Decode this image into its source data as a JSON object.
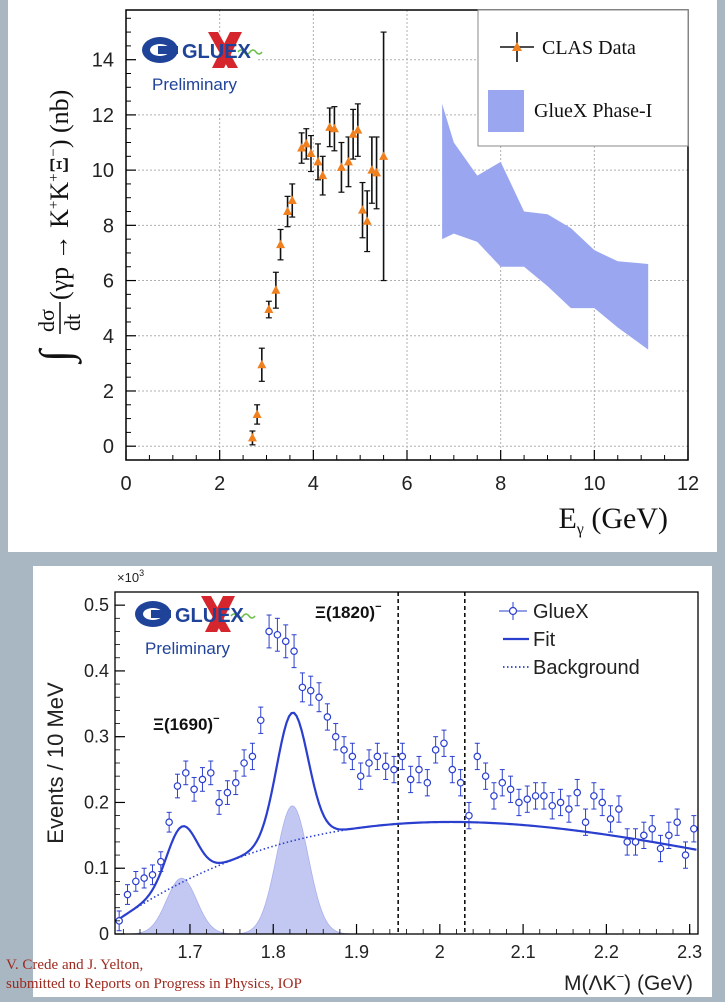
{
  "chart_data": [
    {
      "type": "scatter",
      "xlabel": "E",
      "xlabel_sub": "γ",
      "xlabel_unit": " (GeV)",
      "ylabel_prefix": "∫",
      "ylabel_frac_num": "dσ",
      "ylabel_frac_den": "dt",
      "ylabel_main": "(γp → K",
      "ylabel_sup1": "+",
      "ylabel_k2": "K",
      "ylabel_sup2": "+",
      "ylabel_xi": "Ξ",
      "ylabel_sup3": "−",
      "ylabel_unit": ") (nb)",
      "xlim": [
        0,
        12
      ],
      "ylim": [
        -0.5,
        15.8
      ],
      "xticks": [
        0,
        2,
        4,
        6,
        8,
        10,
        12
      ],
      "yticks": [
        0,
        2,
        4,
        6,
        8,
        10,
        12,
        14
      ],
      "grid": true,
      "legend": [
        {
          "label": "CLAS Data",
          "marker": "triangle",
          "color": "#f07f1e"
        },
        {
          "label": "GlueX Phase-I",
          "marker": "band",
          "color": "#9aa7f0"
        }
      ],
      "logo_text": "GLUEX",
      "logo_sub": "Preliminary",
      "series": [
        {
          "name": "CLAS Data",
          "color": "#f07f1e",
          "points": [
            {
              "x": 2.7,
              "y": 0.3,
              "err": 0.25
            },
            {
              "x": 2.8,
              "y": 1.15,
              "err": 0.35
            },
            {
              "x": 2.9,
              "y": 2.95,
              "err": 0.6
            },
            {
              "x": 3.05,
              "y": 4.95,
              "err": 0.3
            },
            {
              "x": 3.2,
              "y": 5.65,
              "err": 0.65
            },
            {
              "x": 3.3,
              "y": 7.3,
              "err": 0.55
            },
            {
              "x": 3.45,
              "y": 8.5,
              "err": 0.55
            },
            {
              "x": 3.55,
              "y": 8.9,
              "err": 0.6
            },
            {
              "x": 3.75,
              "y": 10.8,
              "err": 0.55
            },
            {
              "x": 3.85,
              "y": 10.95,
              "err": 0.55
            },
            {
              "x": 3.95,
              "y": 10.6,
              "err": 0.65
            },
            {
              "x": 4.1,
              "y": 10.3,
              "err": 0.65
            },
            {
              "x": 4.2,
              "y": 9.8,
              "err": 0.7
            },
            {
              "x": 4.35,
              "y": 11.55,
              "err": 0.7
            },
            {
              "x": 4.45,
              "y": 11.5,
              "err": 0.8
            },
            {
              "x": 4.6,
              "y": 10.1,
              "err": 0.9
            },
            {
              "x": 4.75,
              "y": 10.3,
              "err": 0.9
            },
            {
              "x": 4.85,
              "y": 11.3,
              "err": 0.9
            },
            {
              "x": 4.95,
              "y": 11.45,
              "err": 0.95
            },
            {
              "x": 5.05,
              "y": 8.55,
              "err": 1.0
            },
            {
              "x": 5.15,
              "y": 8.15,
              "err": 1.1
            },
            {
              "x": 5.25,
              "y": 10.0,
              "err": 1.2
            },
            {
              "x": 5.35,
              "y": 9.9,
              "err": 1.3
            },
            {
              "x": 5.5,
              "y": 10.5,
              "err": 4.5
            }
          ]
        }
      ],
      "band": {
        "name": "GlueX Phase-I",
        "color": "#9aa7f0",
        "x": [
          6.75,
          7.0,
          7.5,
          8.0,
          8.5,
          9.0,
          9.5,
          10.0,
          10.5,
          11.15
        ],
        "upper": [
          12.4,
          11.0,
          9.8,
          10.3,
          8.5,
          8.4,
          7.9,
          7.1,
          6.7,
          6.6
        ],
        "lower": [
          7.5,
          7.7,
          7.4,
          6.5,
          6.5,
          5.8,
          5.0,
          5.0,
          4.3,
          3.5
        ]
      }
    },
    {
      "type": "line",
      "xlabel": "M(ΛK",
      "xlabel_sup": "−",
      "xlabel_unit": ") (GeV)",
      "ylabel": "Events / 10 MeV",
      "y_multiplier": "×10",
      "y_multiplier_exp": "3",
      "xlim": [
        1.61,
        2.31
      ],
      "ylim": [
        0,
        0.52
      ],
      "xticks": [
        1.7,
        1.8,
        1.9,
        2.0,
        2.1,
        2.2,
        2.3
      ],
      "xtick_labels": [
        "1.7",
        "1.8",
        "1.9",
        "2",
        "2.1",
        "2.2",
        "2.3"
      ],
      "yticks": [
        0,
        0.1,
        0.2,
        0.3,
        0.4,
        0.5
      ],
      "ytick_labels": [
        "0",
        "0.1",
        "0.2",
        "0.3",
        "0.4",
        "0.5"
      ],
      "legend": [
        {
          "label": "GlueX",
          "style": "open-circle"
        },
        {
          "label": "Fit",
          "style": "solid"
        },
        {
          "label": "Background",
          "style": "dotted"
        }
      ],
      "annotations": [
        {
          "text": "Ξ(1820)",
          "sup": "−"
        },
        {
          "text": "Ξ(1690)",
          "sup": "−"
        }
      ],
      "vlines": [
        1.95,
        2.03
      ],
      "logo_text": "GLUEX",
      "logo_sub": "Preliminary",
      "signal_peaks": [
        {
          "mean": 1.69,
          "sigma": 0.018,
          "amp": 0.085
        },
        {
          "mean": 1.823,
          "sigma": 0.019,
          "amp": 0.195
        }
      ],
      "data": [
        [
          1.615,
          0.02,
          0.015
        ],
        [
          1.625,
          0.06,
          0.015
        ],
        [
          1.635,
          0.08,
          0.015
        ],
        [
          1.645,
          0.085,
          0.015
        ],
        [
          1.655,
          0.09,
          0.015
        ],
        [
          1.665,
          0.11,
          0.015
        ],
        [
          1.675,
          0.17,
          0.015
        ],
        [
          1.685,
          0.225,
          0.018
        ],
        [
          1.695,
          0.245,
          0.018
        ],
        [
          1.705,
          0.22,
          0.018
        ],
        [
          1.715,
          0.235,
          0.018
        ],
        [
          1.725,
          0.245,
          0.018
        ],
        [
          1.735,
          0.2,
          0.018
        ],
        [
          1.745,
          0.215,
          0.018
        ],
        [
          1.755,
          0.23,
          0.018
        ],
        [
          1.765,
          0.26,
          0.02
        ],
        [
          1.775,
          0.27,
          0.02
        ],
        [
          1.785,
          0.325,
          0.02
        ],
        [
          1.795,
          0.46,
          0.025
        ],
        [
          1.805,
          0.455,
          0.025
        ],
        [
          1.815,
          0.445,
          0.025
        ],
        [
          1.825,
          0.43,
          0.025
        ],
        [
          1.835,
          0.375,
          0.022
        ],
        [
          1.845,
          0.37,
          0.022
        ],
        [
          1.855,
          0.36,
          0.022
        ],
        [
          1.865,
          0.33,
          0.02
        ],
        [
          1.875,
          0.3,
          0.02
        ],
        [
          1.885,
          0.28,
          0.02
        ],
        [
          1.895,
          0.27,
          0.02
        ],
        [
          1.905,
          0.24,
          0.02
        ],
        [
          1.915,
          0.26,
          0.02
        ],
        [
          1.925,
          0.27,
          0.02
        ],
        [
          1.935,
          0.255,
          0.02
        ],
        [
          1.945,
          0.25,
          0.02
        ],
        [
          1.955,
          0.27,
          0.02
        ],
        [
          1.965,
          0.235,
          0.02
        ],
        [
          1.975,
          0.25,
          0.02
        ],
        [
          1.985,
          0.23,
          0.02
        ],
        [
          1.995,
          0.28,
          0.02
        ],
        [
          2.005,
          0.29,
          0.02
        ],
        [
          2.015,
          0.25,
          0.02
        ],
        [
          2.025,
          0.23,
          0.02
        ],
        [
          2.035,
          0.18,
          0.02
        ],
        [
          2.045,
          0.27,
          0.02
        ],
        [
          2.055,
          0.24,
          0.02
        ],
        [
          2.065,
          0.21,
          0.02
        ],
        [
          2.075,
          0.23,
          0.02
        ],
        [
          2.085,
          0.22,
          0.02
        ],
        [
          2.095,
          0.2,
          0.02
        ],
        [
          2.105,
          0.205,
          0.02
        ],
        [
          2.115,
          0.21,
          0.02
        ],
        [
          2.125,
          0.21,
          0.02
        ],
        [
          2.135,
          0.195,
          0.02
        ],
        [
          2.145,
          0.2,
          0.02
        ],
        [
          2.155,
          0.19,
          0.02
        ],
        [
          2.165,
          0.215,
          0.02
        ],
        [
          2.175,
          0.17,
          0.02
        ],
        [
          2.185,
          0.21,
          0.02
        ],
        [
          2.195,
          0.2,
          0.02
        ],
        [
          2.205,
          0.175,
          0.02
        ],
        [
          2.215,
          0.19,
          0.02
        ],
        [
          2.225,
          0.14,
          0.02
        ],
        [
          2.235,
          0.14,
          0.02
        ],
        [
          2.245,
          0.15,
          0.02
        ],
        [
          2.255,
          0.16,
          0.02
        ],
        [
          2.265,
          0.13,
          0.02
        ],
        [
          2.275,
          0.15,
          0.02
        ],
        [
          2.285,
          0.17,
          0.02
        ],
        [
          2.295,
          0.12,
          0.02
        ],
        [
          2.305,
          0.16,
          0.02
        ]
      ]
    }
  ],
  "credit": {
    "line1": "V. Crede and J. Yelton,",
    "line2": "submitted to Reports on Progress in Physics, IOP"
  }
}
